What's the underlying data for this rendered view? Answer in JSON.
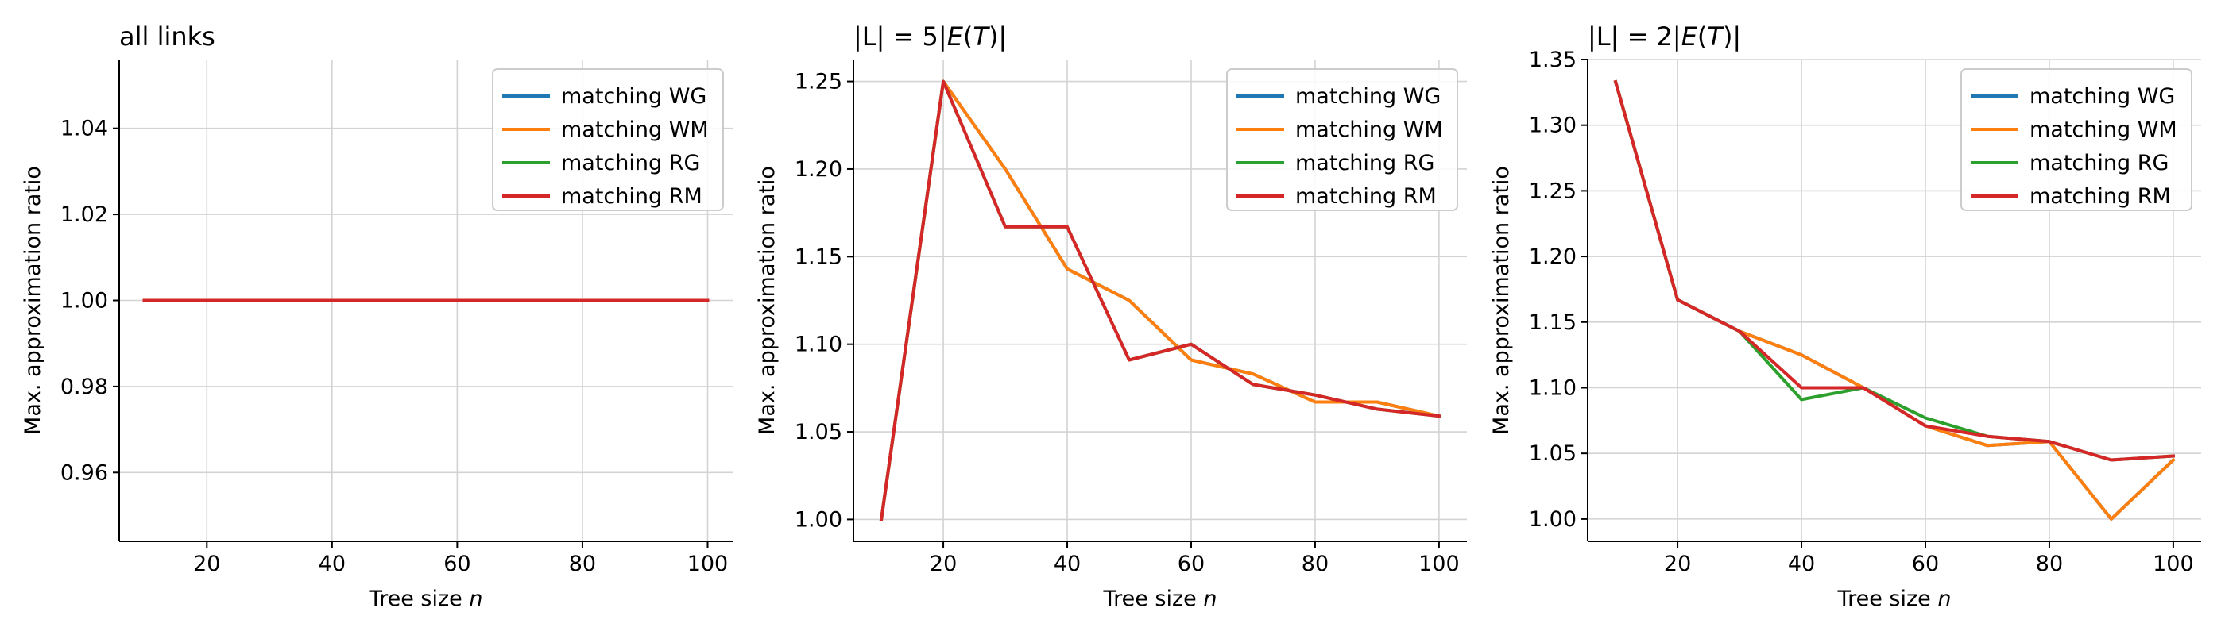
{
  "colors": {
    "matching WG": "#1f77b4",
    "matching WM": "#ff7f0e",
    "matching RG": "#2ca02c",
    "matching RM": "#d62728"
  },
  "chart_data": [
    {
      "type": "line",
      "title": "all links",
      "title_parts": [
        {
          "t": "all links",
          "italic": false
        }
      ],
      "xlabel": "Tree size n",
      "xlabel_parts": [
        {
          "t": "Tree size ",
          "italic": false
        },
        {
          "t": "n",
          "italic": true
        }
      ],
      "ylabel": "Max. approximation ratio",
      "xlim": [
        6,
        104
      ],
      "ylim": [
        0.944,
        1.056
      ],
      "xticks": [
        20,
        40,
        60,
        80,
        100
      ],
      "xtick_labels": [
        "20",
        "40",
        "60",
        "80",
        "100"
      ],
      "yticks": [
        0.96,
        0.98,
        1.0,
        1.02,
        1.04
      ],
      "ytick_labels": [
        "0.96",
        "0.98",
        "1.00",
        "1.02",
        "1.04"
      ],
      "grid": true,
      "legend": "top-right",
      "x": [
        10,
        20,
        30,
        40,
        50,
        60,
        70,
        80,
        90,
        100
      ],
      "series": [
        {
          "name": "matching WG",
          "values": [
            1,
            1,
            1,
            1,
            1,
            1,
            1,
            1,
            1,
            1
          ]
        },
        {
          "name": "matching WM",
          "values": [
            1,
            1,
            1,
            1,
            1,
            1,
            1,
            1,
            1,
            1
          ]
        },
        {
          "name": "matching RG",
          "values": [
            1,
            1,
            1,
            1,
            1,
            1,
            1,
            1,
            1,
            1
          ]
        },
        {
          "name": "matching RM",
          "values": [
            1,
            1,
            1,
            1,
            1,
            1,
            1,
            1,
            1,
            1
          ]
        }
      ]
    },
    {
      "type": "line",
      "title": "|L| = 5|E(T)|",
      "title_parts": [
        {
          "t": "|L| = 5|",
          "italic": false
        },
        {
          "t": "E",
          "italic": true
        },
        {
          "t": "(",
          "italic": false
        },
        {
          "t": "T",
          "italic": true
        },
        {
          "t": ")|",
          "italic": false
        }
      ],
      "xlabel": "Tree size n",
      "xlabel_parts": [
        {
          "t": "Tree size ",
          "italic": false
        },
        {
          "t": "n",
          "italic": true
        }
      ],
      "ylabel": "Max. approximation ratio",
      "xlim": [
        5.5,
        104.5
      ],
      "ylim": [
        0.9875,
        1.2625
      ],
      "xticks": [
        20,
        40,
        60,
        80,
        100
      ],
      "xtick_labels": [
        "20",
        "40",
        "60",
        "80",
        "100"
      ],
      "yticks": [
        1.0,
        1.05,
        1.1,
        1.15,
        1.2,
        1.25
      ],
      "ytick_labels": [
        "1.00",
        "1.05",
        "1.10",
        "1.15",
        "1.20",
        "1.25"
      ],
      "grid": true,
      "legend": "top-right",
      "x": [
        10,
        20,
        30,
        40,
        50,
        60,
        70,
        80,
        90,
        100
      ],
      "series": [
        {
          "name": "matching WG",
          "values": [
            1.0,
            1.25,
            1.2,
            1.143,
            1.125,
            1.091,
            1.083,
            1.067,
            1.067,
            1.059
          ]
        },
        {
          "name": "matching WM",
          "values": [
            1.0,
            1.25,
            1.2,
            1.143,
            1.125,
            1.091,
            1.083,
            1.067,
            1.067,
            1.059
          ]
        },
        {
          "name": "matching RG",
          "values": [
            1.0,
            1.25,
            1.167,
            1.167,
            1.091,
            1.1,
            1.077,
            1.071,
            1.063,
            1.059
          ]
        },
        {
          "name": "matching RM",
          "values": [
            1.0,
            1.25,
            1.167,
            1.167,
            1.091,
            1.1,
            1.077,
            1.071,
            1.063,
            1.059
          ]
        }
      ]
    },
    {
      "type": "line",
      "title": "|L| = 2|E(T)|",
      "title_parts": [
        {
          "t": "|L| = 2|",
          "italic": false
        },
        {
          "t": "E",
          "italic": true
        },
        {
          "t": "(",
          "italic": false
        },
        {
          "t": "T",
          "italic": true
        },
        {
          "t": ")|",
          "italic": false
        }
      ],
      "xlabel": "Tree size n",
      "xlabel_parts": [
        {
          "t": "Tree size ",
          "italic": false
        },
        {
          "t": "n",
          "italic": true
        }
      ],
      "ylabel": "Max. approximation ratio",
      "xlim": [
        5.5,
        104.5
      ],
      "ylim": [
        0.983,
        1.35
      ],
      "xticks": [
        20,
        40,
        60,
        80,
        100
      ],
      "xtick_labels": [
        "20",
        "40",
        "60",
        "80",
        "100"
      ],
      "yticks": [
        1.0,
        1.05,
        1.1,
        1.15,
        1.2,
        1.25,
        1.3,
        1.35
      ],
      "ytick_labels": [
        "1.00",
        "1.05",
        "1.10",
        "1.15",
        "1.20",
        "1.25",
        "1.30",
        "1.35"
      ],
      "grid": true,
      "legend": "top-right",
      "x": [
        10,
        20,
        30,
        40,
        50,
        60,
        70,
        80,
        90,
        100
      ],
      "series": [
        {
          "name": "matching WG",
          "values": [
            1.333,
            1.167,
            1.143,
            1.125,
            1.1,
            1.071,
            1.056,
            1.059,
            1.0,
            1.045
          ]
        },
        {
          "name": "matching WM",
          "values": [
            1.333,
            1.167,
            1.143,
            1.125,
            1.1,
            1.071,
            1.056,
            1.059,
            1.0,
            1.045
          ]
        },
        {
          "name": "matching RG",
          "values": [
            1.333,
            1.167,
            1.143,
            1.091,
            1.1,
            1.077,
            1.063,
            1.059,
            1.045,
            1.048
          ]
        },
        {
          "name": "matching RM",
          "values": [
            1.333,
            1.167,
            1.143,
            1.1,
            1.1,
            1.071,
            1.063,
            1.059,
            1.045,
            1.048
          ]
        }
      ]
    }
  ]
}
